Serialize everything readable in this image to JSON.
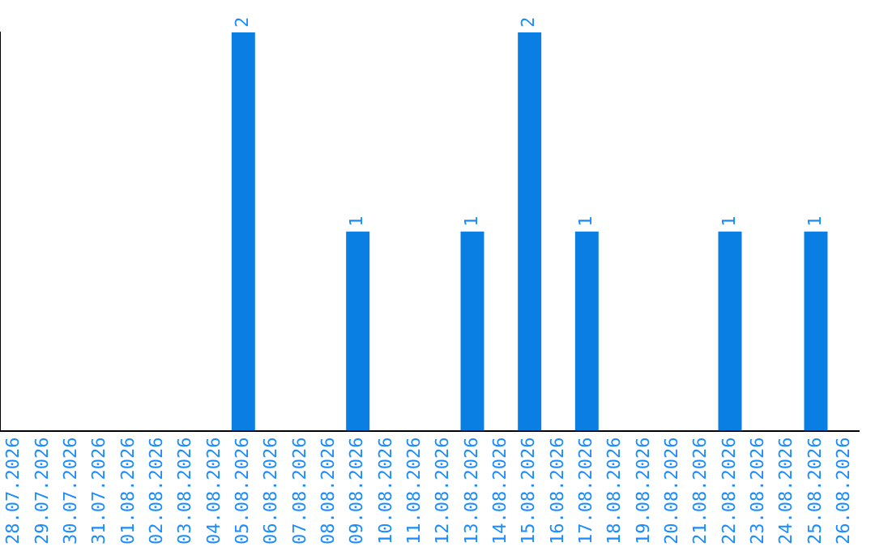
{
  "chart_data": {
    "type": "bar",
    "categories": [
      "28.07.2026",
      "29.07.2026",
      "30.07.2026",
      "31.07.2026",
      "01.08.2026",
      "02.08.2026",
      "03.08.2026",
      "04.08.2026",
      "05.08.2026",
      "06.08.2026",
      "07.08.2026",
      "08.08.2026",
      "09.08.2026",
      "10.08.2026",
      "11.08.2026",
      "12.08.2026",
      "13.08.2026",
      "14.08.2026",
      "15.08.2026",
      "16.08.2026",
      "17.08.2026",
      "18.08.2026",
      "19.08.2026",
      "20.08.2026",
      "21.08.2026",
      "22.08.2026",
      "23.08.2026",
      "24.08.2026",
      "25.08.2026",
      "26.08.2026"
    ],
    "values": [
      0,
      0,
      0,
      0,
      0,
      0,
      0,
      0,
      2,
      0,
      0,
      0,
      1,
      0,
      0,
      0,
      1,
      0,
      2,
      0,
      1,
      0,
      0,
      0,
      0,
      1,
      0,
      0,
      1,
      0
    ],
    "value_labels": [
      null,
      null,
      null,
      null,
      null,
      null,
      null,
      null,
      "2",
      null,
      null,
      null,
      "1",
      null,
      null,
      null,
      "1",
      null,
      "2",
      null,
      "1",
      null,
      null,
      null,
      null,
      "1",
      null,
      null,
      "1",
      null
    ],
    "color": "#0a7fe3",
    "tick_labels": "x",
    "grid": false,
    "legend": false
  }
}
